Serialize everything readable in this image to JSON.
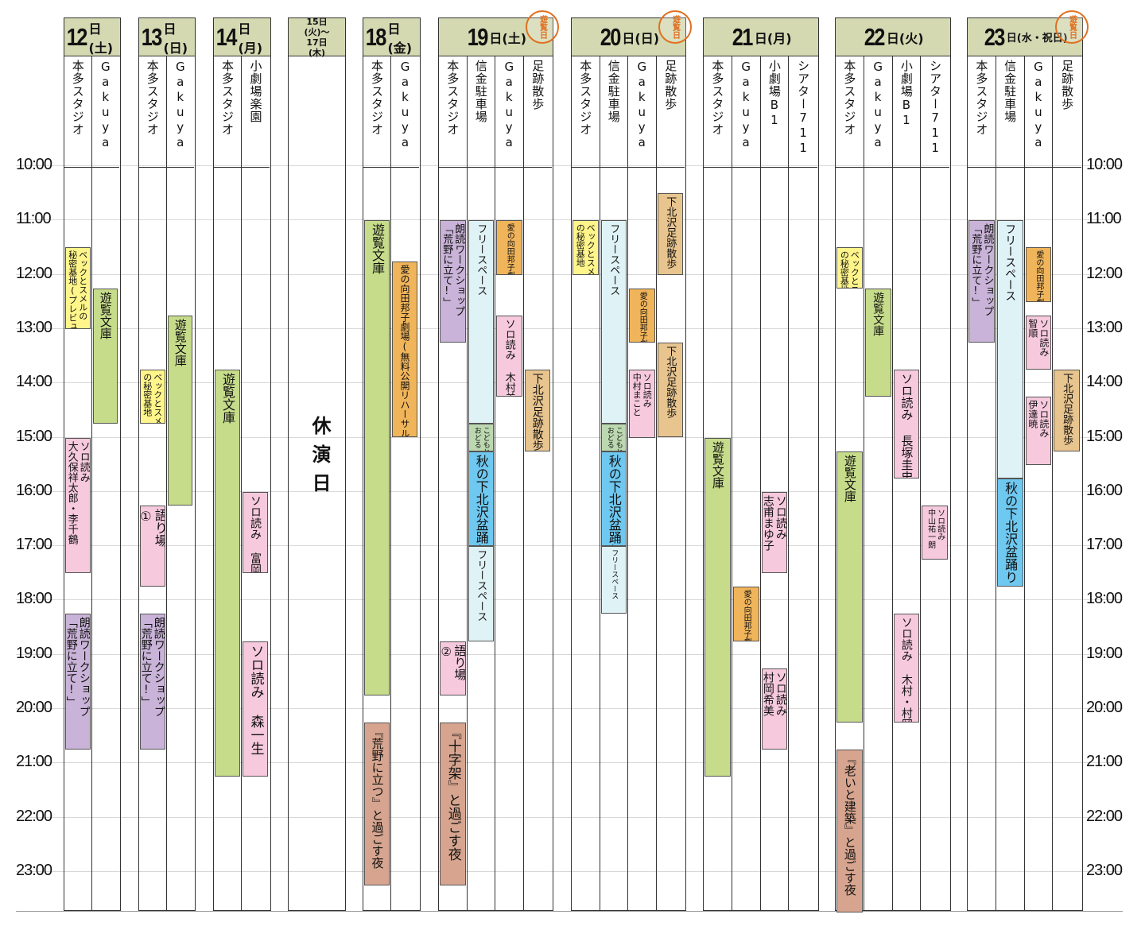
{
  "colors": {
    "green": "#c6dc8a",
    "orange": "#f0b45a",
    "purple": "#c9b3d8",
    "pink": "#f6c9dd",
    "yellow": "#fff58a",
    "lightblue": "#dff2f5",
    "blue": "#6ec8f0",
    "brown": "#d7a58f",
    "tan": "#e8c48e",
    "lightgreen": "#bcd8b0",
    "header": "#d4d9b2",
    "stamp": "#e07020"
  },
  "hours": [
    "10:00",
    "11:00",
    "12:00",
    "13:00",
    "14:00",
    "15:00",
    "16:00",
    "17:00",
    "18:00",
    "19:00",
    "20:00",
    "21:00",
    "22:00",
    "23:00"
  ],
  "days": [
    {
      "num": "12",
      "suf": "日(土)",
      "cols": [
        {
          "name": "本多スタジオ",
          "events": [
            {
              "s": 11.5,
              "e": 13,
              "c": "yellow",
              "t": "ベックとスメルの\n秘密基地(プレビュー)",
              "fs": 11
            },
            {
              "s": 15,
              "e": 17.5,
              "c": "pink",
              "t": "ソロ読み\n大久保祥太郎・李千鶴",
              "fs": 13
            },
            {
              "s": 18.25,
              "e": 20.75,
              "c": "purple",
              "t": "朗読ワークショップ\n「荒野に立て!」",
              "fs": 14
            }
          ]
        },
        {
          "name": "Gakuya",
          "events": [
            {
              "s": 12.25,
              "e": 14.75,
              "c": "green",
              "t": "遊覧文庫",
              "fs": 15
            }
          ]
        }
      ]
    },
    {
      "num": "13",
      "suf": "日(日)",
      "cols": [
        {
          "name": "本多スタジオ",
          "events": [
            {
              "s": 13.75,
              "e": 14.75,
              "c": "yellow",
              "t": "ベックとスメル\nの秘密基地",
              "fs": 11
            },
            {
              "s": 16.25,
              "e": 17.75,
              "c": "pink",
              "t": "語り場\n①",
              "fs": 16
            },
            {
              "s": 18.25,
              "e": 20.75,
              "c": "purple",
              "t": "朗読ワークショップ\n「荒野に立て!」",
              "fs": 14
            }
          ]
        },
        {
          "name": "Gakuya",
          "events": [
            {
              "s": 12.75,
              "e": 16.25,
              "c": "green",
              "t": "遊覧文庫",
              "fs": 15
            }
          ]
        }
      ]
    },
    {
      "num": "14",
      "suf": "日(月)",
      "cols": [
        {
          "name": "本多スタジオ",
          "events": [
            {
              "s": 13.75,
              "e": 21.25,
              "c": "green",
              "t": "遊覧文庫",
              "fs": 16
            }
          ]
        },
        {
          "name": "小劇場楽園",
          "events": [
            {
              "s": 16,
              "e": 17.5,
              "c": "pink",
              "t": "ソロ読み 富岡晃一郎",
              "fs": 14
            },
            {
              "s": 18.75,
              "e": 21.25,
              "c": "pink",
              "t": "ソロ読み 森一生",
              "fs": 17
            }
          ]
        }
      ]
    },
    {
      "num": "15日(火)〜17日(木)",
      "suf": "",
      "small": true,
      "holiday": "休演日",
      "cols": [
        {
          "name": "",
          "events": []
        }
      ]
    },
    {
      "num": "18",
      "suf": "日(金)",
      "cols": [
        {
          "name": "本多スタジオ",
          "events": [
            {
              "s": 11,
              "e": 19.75,
              "c": "green",
              "t": "遊覧文庫",
              "fs": 16
            },
            {
              "s": 20.25,
              "e": 23.25,
              "c": "brown",
              "t": "『荒野に立つ』と過ごす夜",
              "fs": 15
            }
          ]
        },
        {
          "name": "Gakuya",
          "events": [
            {
              "s": 11.75,
              "e": 15,
              "c": "orange",
              "t": "愛の向田邦子劇場(無料公開リハーサル)",
              "fs": 12
            }
          ]
        }
      ]
    },
    {
      "num": "19",
      "suf": "日(土)",
      "stamp": "遊覧日",
      "cols": [
        {
          "name": "本多スタジオ",
          "events": [
            {
              "s": 11,
              "e": 13.25,
              "c": "purple",
              "t": "朗読ワークショップ\n「荒野に立て!」",
              "fs": 13
            },
            {
              "s": 18.75,
              "e": 19.75,
              "c": "pink",
              "t": "語り場\n②",
              "fs": 15
            },
            {
              "s": 20.25,
              "e": 23.25,
              "c": "brown",
              "t": "『十字架』と過ごす夜",
              "fs": 17
            }
          ]
        },
        {
          "name": "信金駐車場",
          "events": [
            {
              "s": 11,
              "e": 14.75,
              "c": "lightblue",
              "t": "フリースペース",
              "fs": 13
            },
            {
              "s": 14.75,
              "e": 15.25,
              "c": "lightgreen",
              "t": "こどもと\nおどる",
              "fs": 9
            },
            {
              "s": 15.25,
              "e": 17,
              "c": "blue",
              "t": "秋の下北沢盆踊り",
              "fs": 16
            },
            {
              "s": 17,
              "e": 18.75,
              "c": "lightblue",
              "t": "フリースペース",
              "fs": 13
            }
          ]
        },
        {
          "name": "Gakuya",
          "events": [
            {
              "s": 11,
              "e": 12,
              "c": "orange",
              "t": "愛の向田邦子劇場",
              "fs": 10
            },
            {
              "s": 12.75,
              "e": 14.25,
              "c": "pink",
              "t": "ソロ読み 木村美月",
              "fs": 13
            }
          ]
        },
        {
          "name": "足跡散歩",
          "events": [
            {
              "s": 13.75,
              "e": 15.25,
              "c": "tan",
              "t": "下北沢足跡散歩",
              "fs": 14
            }
          ]
        }
      ]
    },
    {
      "num": "20",
      "suf": "日(日)",
      "stamp": "遊覧日",
      "cols": [
        {
          "name": "本多スタジオ",
          "events": [
            {
              "s": 11,
              "e": 12,
              "c": "yellow",
              "t": "ベックとスメル\nの秘密基地",
              "fs": 11
            }
          ]
        },
        {
          "name": "信金駐車場",
          "events": [
            {
              "s": 11,
              "e": 14.75,
              "c": "lightblue",
              "t": "フリースペース",
              "fs": 13
            },
            {
              "s": 14.75,
              "e": 15.25,
              "c": "lightgreen",
              "t": "こどもと\nおどる",
              "fs": 9
            },
            {
              "s": 15.25,
              "e": 17,
              "c": "blue",
              "t": "秋の下北沢盆踊り",
              "fs": 16
            },
            {
              "s": 17,
              "e": 18.25,
              "c": "lightblue",
              "t": "フリースペース",
              "fs": 9
            }
          ]
        },
        {
          "name": "Gakuya",
          "events": [
            {
              "s": 12.25,
              "e": 13.25,
              "c": "orange",
              "t": "愛の向田邦子劇場",
              "fs": 10
            },
            {
              "s": 13.75,
              "e": 15,
              "c": "pink",
              "t": "ソロ読み\n中村まこと",
              "fs": 11
            }
          ]
        },
        {
          "name": "足跡散歩",
          "events": [
            {
              "s": 10.5,
              "e": 12,
              "c": "tan",
              "t": "下北沢足跡散歩",
              "fs": 13
            },
            {
              "s": 13.25,
              "e": 15,
              "c": "tan",
              "t": "下北沢足跡散歩",
              "fs": 13
            }
          ]
        }
      ]
    },
    {
      "num": "21",
      "suf": "日(月)",
      "cols": [
        {
          "name": "本多スタジオ",
          "events": [
            {
              "s": 15,
              "e": 21.25,
              "c": "green",
              "t": "遊覧文庫",
              "fs": 15
            }
          ]
        },
        {
          "name": "Gakuya",
          "events": [
            {
              "s": 17.75,
              "e": 18.75,
              "c": "orange",
              "t": "愛の向田邦子劇場",
              "fs": 10
            }
          ]
        },
        {
          "name": "小劇場B1",
          "events": [
            {
              "s": 16,
              "e": 17.5,
              "c": "pink",
              "t": "ソロ読み\n志甫まゆ子",
              "fs": 14
            },
            {
              "s": 19.25,
              "e": 20.75,
              "c": "pink",
              "t": "ソロ読み\n村岡希美",
              "fs": 14
            }
          ]
        },
        {
          "name": "シアター711",
          "events": []
        }
      ]
    },
    {
      "num": "22",
      "suf": "日(火)",
      "cols": [
        {
          "name": "本多スタジオ",
          "events": [
            {
              "s": 11.5,
              "e": 12.25,
              "c": "yellow",
              "t": "ベックとスメル\nの秘密基地",
              "fs": 11
            },
            {
              "s": 15.25,
              "e": 20.25,
              "c": "green",
              "t": "遊覧文庫",
              "fs": 15
            },
            {
              "s": 20.75,
              "e": 23.75,
              "c": "brown",
              "t": "『老いと建築』と過ごす夜",
              "fs": 15
            }
          ]
        },
        {
          "name": "Gakuya",
          "events": [
            {
              "s": 12.25,
              "e": 14.25,
              "c": "green",
              "t": "遊覧文庫",
              "fs": 14
            }
          ]
        },
        {
          "name": "小劇場B1",
          "events": [
            {
              "s": 13.75,
              "e": 15.75,
              "c": "pink",
              "t": "ソロ読み 長塚圭史",
              "fs": 15
            },
            {
              "s": 18.25,
              "e": 20.25,
              "c": "pink",
              "t": "ソロ読み 木村・村岡・長塚",
              "fs": 14
            }
          ]
        },
        {
          "name": "シアター711",
          "events": [
            {
              "s": 16.25,
              "e": 17.25,
              "c": "pink",
              "t": "ソロ読み\n中山祐一朗",
              "fs": 10
            }
          ]
        }
      ]
    },
    {
      "num": "23",
      "suf": "日(水・祝日)",
      "stamp": "遊覧日",
      "cols": [
        {
          "name": "本多スタジオ",
          "events": [
            {
              "s": 11,
              "e": 13.25,
              "c": "purple",
              "t": "朗読ワークショップ\n「荒野に立て!」",
              "fs": 13
            }
          ]
        },
        {
          "name": "信金駐車場",
          "events": [
            {
              "s": 11,
              "e": 15.75,
              "c": "lightblue",
              "t": "フリースペース",
              "fs": 14
            },
            {
              "s": 15.75,
              "e": 17.75,
              "c": "blue",
              "t": "秋の下北沢盆踊り",
              "fs": 16
            }
          ]
        },
        {
          "name": "Gakuya",
          "events": [
            {
              "s": 11.5,
              "e": 12.5,
              "c": "orange",
              "t": "愛の向田邦子劇場",
              "fs": 10
            },
            {
              "s": 12.75,
              "e": 13.75,
              "c": "pink",
              "t": "ソロ読み\n智順",
              "fs": 12
            },
            {
              "s": 14.25,
              "e": 15.5,
              "c": "pink",
              "t": "ソロ読み\n伊達暁",
              "fs": 12
            }
          ]
        },
        {
          "name": "足跡散歩",
          "events": [
            {
              "s": 13.75,
              "e": 15.25,
              "c": "tan",
              "t": "下北沢足跡散歩",
              "fs": 13
            }
          ]
        }
      ]
    }
  ]
}
